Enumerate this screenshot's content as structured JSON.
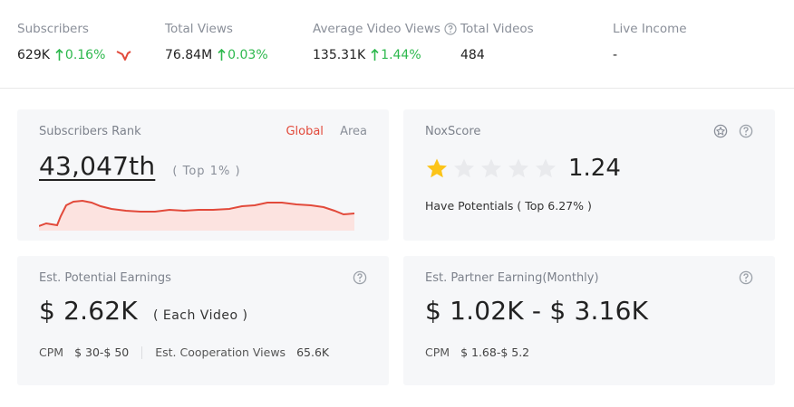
{
  "stats": [
    {
      "label": "Subscribers",
      "value": "629K",
      "change": "0.16%"
    },
    {
      "label": "Total Views",
      "value": "76.84M",
      "change": "0.03%"
    },
    {
      "label": "Average Video Views",
      "value": "135.31K",
      "change": "1.44%"
    },
    {
      "label": "Total Videos",
      "value": "484"
    },
    {
      "label": "Live Income",
      "value": "-"
    }
  ],
  "rank": {
    "title": "Subscribers Rank",
    "tabs": [
      "Global",
      "Area"
    ],
    "active_tab": "Global",
    "value": "43,047th",
    "note": "( Top 1% )"
  },
  "noxscore": {
    "title": "NoxScore",
    "score": "1.24",
    "stars_filled": 1,
    "stars_total": 5,
    "potential": "Have Potentials ( Top 6.27% )"
  },
  "potential_earnings": {
    "title": "Est. Potential Earnings",
    "value": "$ 2.62K",
    "note": "( Each Video )",
    "cpm_label": "CPM",
    "cpm_value": "$ 30-$ 50",
    "views_label": "Est. Cooperation Views",
    "views_value": "65.6K"
  },
  "partner_earning": {
    "title": "Est. Partner Earning(Monthly)",
    "value": "$ 1.02K - $ 3.16K",
    "cpm_label": "CPM",
    "cpm_value": "$ 1.68-$ 5.2"
  },
  "colors": {
    "accent": "#e24a3b",
    "up": "#2db84d",
    "star": "#fcc419"
  }
}
